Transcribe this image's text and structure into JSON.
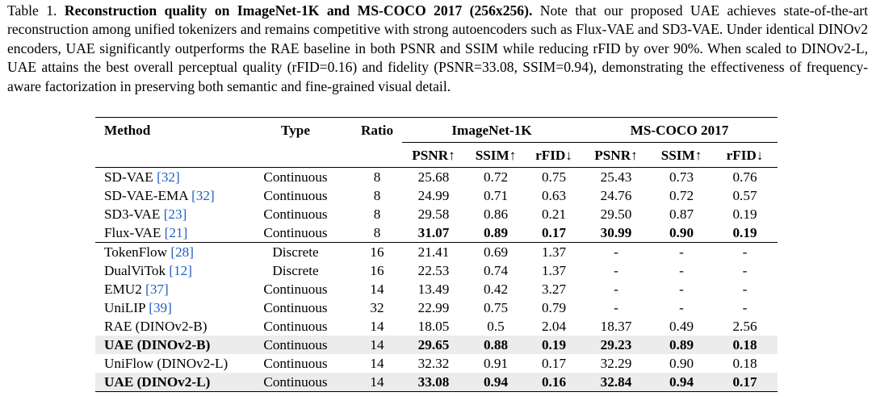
{
  "caption": {
    "label": "Table 1.",
    "title": "Reconstruction quality on ImageNet-1K and MS-COCO 2017 (256x256).",
    "body": "Note that our proposed UAE achieves state-of-the-art reconstruction among unified tokenizers and remains competitive with strong autoencoders such as Flux-VAE and SD3-VAE. Under identical DINOv2 encoders, UAE significantly outperforms the RAE baseline in both PSNR and SSIM while reducing rFID by over 90%. When scaled to DINOv2-L, UAE attains the best overall perceptual quality (rFID=0.16) and fidelity (PSNR=33.08, SSIM=0.94), demonstrating the effectiveness of frequency-aware factorization in preserving both semantic and fine-grained visual detail."
  },
  "table": {
    "headers": {
      "method": "Method",
      "type": "Type",
      "ratio": "Ratio",
      "group1": "ImageNet-1K",
      "group2": "MS-COCO 2017",
      "metrics": [
        "PSNR↑",
        "SSIM↑",
        "rFID↓",
        "PSNR↑",
        "SSIM↑",
        "rFID↓"
      ]
    },
    "group_a": [
      {
        "name": "SD-VAE",
        "cite": "[32]",
        "type": "Continuous",
        "ratio": "8",
        "vals": [
          "25.68",
          "0.72",
          "0.75",
          "25.43",
          "0.73",
          "0.76"
        ],
        "bold": [
          false,
          false,
          false,
          false,
          false,
          false
        ],
        "highlight": false,
        "name_bold": false
      },
      {
        "name": "SD-VAE-EMA",
        "cite": "[32]",
        "type": "Continuous",
        "ratio": "8",
        "vals": [
          "24.99",
          "0.71",
          "0.63",
          "24.76",
          "0.72",
          "0.57"
        ],
        "bold": [
          false,
          false,
          false,
          false,
          false,
          false
        ],
        "highlight": false,
        "name_bold": false
      },
      {
        "name": "SD3-VAE",
        "cite": "[23]",
        "type": "Continuous",
        "ratio": "8",
        "vals": [
          "29.58",
          "0.86",
          "0.21",
          "29.50",
          "0.87",
          "0.19"
        ],
        "bold": [
          false,
          false,
          false,
          false,
          false,
          false
        ],
        "highlight": false,
        "name_bold": false
      },
      {
        "name": "Flux-VAE",
        "cite": "[21]",
        "type": "Continuous",
        "ratio": "8",
        "vals": [
          "31.07",
          "0.89",
          "0.17",
          "30.99",
          "0.90",
          "0.19"
        ],
        "bold": [
          true,
          true,
          true,
          true,
          true,
          true
        ],
        "highlight": false,
        "name_bold": false
      }
    ],
    "group_b": [
      {
        "name": "TokenFlow",
        "cite": "[28]",
        "type": "Discrete",
        "ratio": "16",
        "vals": [
          "21.41",
          "0.69",
          "1.37",
          "-",
          "-",
          "-"
        ],
        "bold": [
          false,
          false,
          false,
          false,
          false,
          false
        ],
        "highlight": false,
        "name_bold": false
      },
      {
        "name": "DualViTok",
        "cite": "[12]",
        "type": "Discrete",
        "ratio": "16",
        "vals": [
          "22.53",
          "0.74",
          "1.37",
          "-",
          "-",
          "-"
        ],
        "bold": [
          false,
          false,
          false,
          false,
          false,
          false
        ],
        "highlight": false,
        "name_bold": false
      },
      {
        "name": "EMU2",
        "cite": "[37]",
        "type": "Continuous",
        "ratio": "14",
        "vals": [
          "13.49",
          "0.42",
          "3.27",
          "-",
          "-",
          "-"
        ],
        "bold": [
          false,
          false,
          false,
          false,
          false,
          false
        ],
        "highlight": false,
        "name_bold": false
      },
      {
        "name": "UniLIP",
        "cite": "[39]",
        "type": "Continuous",
        "ratio": "32",
        "vals": [
          "22.99",
          "0.75",
          "0.79",
          "-",
          "-",
          "-"
        ],
        "bold": [
          false,
          false,
          false,
          false,
          false,
          false
        ],
        "highlight": false,
        "name_bold": false
      },
      {
        "name": "RAE (DINOv2-B)",
        "cite": "",
        "type": "Continuous",
        "ratio": "14",
        "vals": [
          "18.05",
          "0.5",
          "2.04",
          "18.37",
          "0.49",
          "2.56"
        ],
        "bold": [
          false,
          false,
          false,
          false,
          false,
          false
        ],
        "highlight": false,
        "name_bold": false
      },
      {
        "name": "UAE (DINOv2-B)",
        "cite": "",
        "type": "Continuous",
        "ratio": "14",
        "vals": [
          "29.65",
          "0.88",
          "0.19",
          "29.23",
          "0.89",
          "0.18"
        ],
        "bold": [
          true,
          true,
          true,
          true,
          true,
          true
        ],
        "highlight": true,
        "name_bold": true
      },
      {
        "name": "UniFlow (DINOv2-L)",
        "cite": "",
        "type": "Continuous",
        "ratio": "14",
        "vals": [
          "32.32",
          "0.91",
          "0.17",
          "32.29",
          "0.90",
          "0.18"
        ],
        "bold": [
          false,
          false,
          false,
          false,
          false,
          false
        ],
        "highlight": false,
        "name_bold": false
      },
      {
        "name": "UAE (DINOv2-L)",
        "cite": "",
        "type": "Continuous",
        "ratio": "14",
        "vals": [
          "33.08",
          "0.94",
          "0.16",
          "32.84",
          "0.94",
          "0.17"
        ],
        "bold": [
          true,
          true,
          true,
          true,
          true,
          true
        ],
        "highlight": true,
        "name_bold": true
      }
    ]
  }
}
